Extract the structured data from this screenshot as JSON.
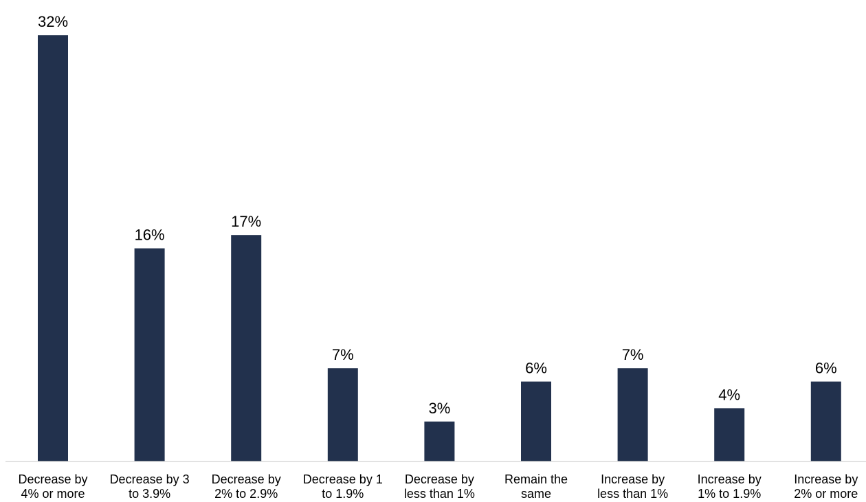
{
  "chart_data": {
    "type": "bar",
    "title": "",
    "xlabel": "",
    "ylabel": "",
    "categories": [
      [
        "Decrease by",
        "4% or more"
      ],
      [
        "Decrease by 3",
        "to 3.9%"
      ],
      [
        "Decrease by",
        "2% to 2.9%"
      ],
      [
        "Decrease by 1",
        "to 1.9%"
      ],
      [
        "Decrease by",
        "less than 1%"
      ],
      [
        "Remain the",
        "same"
      ],
      [
        "Increase by",
        "less than 1%"
      ],
      [
        "Increase by",
        "1% to 1.9%"
      ],
      [
        "Increase by",
        "2% or more"
      ]
    ],
    "values": [
      32,
      16,
      17,
      7,
      3,
      6,
      7,
      4,
      6
    ],
    "data_labels": [
      "32%",
      "16%",
      "17%",
      "7%",
      "3%",
      "6%",
      "7%",
      "4%",
      "6%"
    ],
    "value_unit": "%",
    "bar_color": "#22314d",
    "axis_color": "#d9d9d9",
    "grid": false,
    "legend": "none"
  }
}
